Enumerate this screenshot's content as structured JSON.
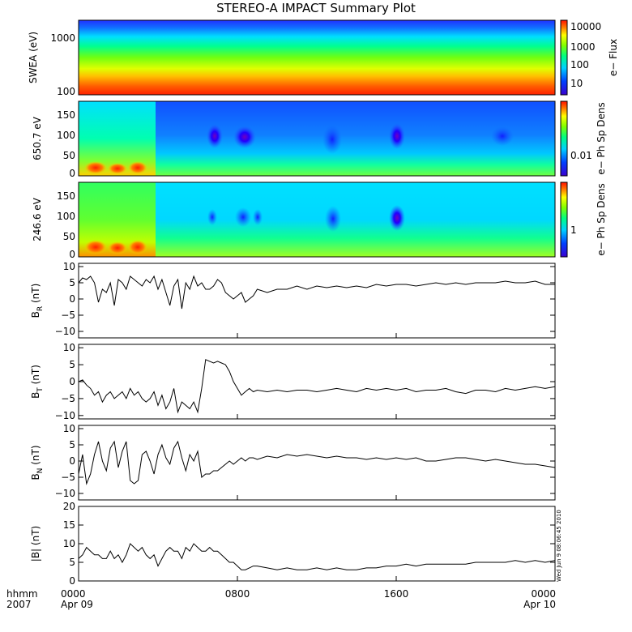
{
  "title": "STEREO-A IMPACT Summary Plot",
  "timestamp_stamp": "Wed Jun 9 08:06:45 2010",
  "x_axis": {
    "row1_labels": [
      "hhmm",
      "0000",
      "0800",
      "1600",
      "0000"
    ],
    "row2_labels": [
      "2007",
      "Apr 09",
      "Apr 10"
    ]
  },
  "colormap": "rainbow (purple-blue-cyan-green-yellow-red)",
  "chart_data": [
    {
      "type": "heatmap",
      "ylabel": "SWEA (eV)",
      "yscale": "log",
      "yticks": [
        "1000",
        "100"
      ],
      "colorbar": {
        "label": "e− Flux",
        "ticks": [
          "10000",
          "1000",
          "100",
          "10"
        ]
      }
    },
    {
      "type": "heatmap",
      "ylabel": "650.7 eV",
      "yticks": [
        "150",
        "100",
        "50",
        "0"
      ],
      "ylim": [
        0,
        180
      ],
      "colorbar": {
        "label": "e− Ph Sp Dens",
        "ticks": [
          "0.01"
        ]
      }
    },
    {
      "type": "heatmap",
      "ylabel": "246.6 eV",
      "yticks": [
        "150",
        "100",
        "50",
        "0"
      ],
      "ylim": [
        0,
        180
      ],
      "colorbar": {
        "label": "e− Ph Sp Dens",
        "ticks": [
          "1"
        ]
      }
    },
    {
      "type": "line",
      "ylabel": "B",
      "ylabel_sub": "R",
      "ylabel_unit": "(nT)",
      "ylim": [
        -12,
        11
      ],
      "yticks": [
        "10",
        "5",
        "0",
        "−5",
        "−10"
      ],
      "x": [
        0,
        0.2,
        0.4,
        0.6,
        0.8,
        1,
        1.2,
        1.4,
        1.6,
        1.8,
        2,
        2.2,
        2.4,
        2.6,
        2.8,
        3,
        3.2,
        3.4,
        3.6,
        3.8,
        4,
        4.2,
        4.4,
        4.6,
        4.8,
        5,
        5.2,
        5.4,
        5.6,
        5.8,
        6,
        6.2,
        6.4,
        6.6,
        6.8,
        7,
        7.2,
        7.4,
        7.6,
        7.8,
        8,
        8.2,
        8.4,
        8.6,
        8.8,
        9,
        9.5,
        10,
        10.5,
        11,
        11.5,
        12,
        12.5,
        13,
        13.5,
        14,
        14.5,
        15,
        15.5,
        16,
        16.5,
        17,
        17.5,
        18,
        18.5,
        19,
        19.5,
        20,
        20.5,
        21,
        21.5,
        22,
        22.5,
        23,
        23.5,
        24
      ],
      "y": [
        5,
        6.5,
        6,
        7,
        5,
        -1,
        3,
        2,
        5,
        -2,
        6,
        5,
        3,
        7,
        6,
        5,
        4,
        6,
        5,
        7,
        3,
        6,
        2,
        -2,
        4,
        6,
        -3,
        5,
        3,
        7,
        4,
        5,
        3,
        3,
        4,
        6,
        5,
        2,
        1,
        0,
        1,
        2,
        -1,
        0,
        1,
        3,
        2,
        3,
        3,
        4,
        3,
        4,
        3.5,
        4,
        3.5,
        4,
        3.5,
        4.5,
        4,
        4.5,
        4.5,
        4,
        4.5,
        5,
        4.5,
        5,
        4.5,
        5,
        5,
        5,
        5.5,
        5,
        5,
        5.5,
        4.5,
        4.5
      ]
    },
    {
      "type": "line",
      "ylabel": "B",
      "ylabel_sub": "T",
      "ylabel_unit": "(nT)",
      "ylim": [
        -11,
        11
      ],
      "yticks": [
        "10",
        "5",
        "0",
        "−5",
        "−10"
      ],
      "x": [
        0,
        0.2,
        0.4,
        0.6,
        0.8,
        1,
        1.2,
        1.4,
        1.6,
        1.8,
        2,
        2.2,
        2.4,
        2.6,
        2.8,
        3,
        3.2,
        3.4,
        3.6,
        3.8,
        4,
        4.2,
        4.4,
        4.6,
        4.8,
        5,
        5.2,
        5.4,
        5.6,
        5.8,
        6,
        6.2,
        6.4,
        6.6,
        6.8,
        7,
        7.2,
        7.4,
        7.6,
        7.8,
        8,
        8.2,
        8.4,
        8.6,
        8.8,
        9,
        9.5,
        10,
        10.5,
        11,
        11.5,
        12,
        12.5,
        13,
        13.5,
        14,
        14.5,
        15,
        15.5,
        16,
        16.5,
        17,
        17.5,
        18,
        18.5,
        19,
        19.5,
        20,
        20.5,
        21,
        21.5,
        22,
        22.5,
        23,
        23.5,
        24
      ],
      "y": [
        0,
        0.5,
        -1,
        -2,
        -4,
        -3,
        -6,
        -4,
        -3,
        -5,
        -4,
        -3,
        -5,
        -2,
        -4,
        -3,
        -5,
        -6,
        -5,
        -3,
        -7,
        -4,
        -8,
        -6,
        -2,
        -9,
        -6,
        -7,
        -8,
        -6,
        -9,
        -2,
        6.5,
        6,
        5.5,
        6,
        5.5,
        5,
        3,
        0,
        -2,
        -4,
        -3,
        -2,
        -3,
        -2.5,
        -3,
        -2.5,
        -3,
        -2.5,
        -2.5,
        -3,
        -2.5,
        -2,
        -2.5,
        -3,
        -2,
        -2.5,
        -2,
        -2.5,
        -2,
        -3,
        -2.5,
        -2.5,
        -2,
        -3,
        -3.5,
        -2.5,
        -2.5,
        -3,
        -2,
        -2.5,
        -2,
        -1.5,
        -2,
        -1.5
      ]
    },
    {
      "type": "line",
      "ylabel": "B",
      "ylabel_sub": "N",
      "ylabel_unit": "(nT)",
      "ylim": [
        -12,
        11
      ],
      "yticks": [
        "10",
        "5",
        "0",
        "−5",
        "−10"
      ],
      "x": [
        0,
        0.2,
        0.4,
        0.6,
        0.8,
        1,
        1.2,
        1.4,
        1.6,
        1.8,
        2,
        2.2,
        2.4,
        2.6,
        2.8,
        3,
        3.2,
        3.4,
        3.6,
        3.8,
        4,
        4.2,
        4.4,
        4.6,
        4.8,
        5,
        5.2,
        5.4,
        5.6,
        5.8,
        6,
        6.2,
        6.4,
        6.6,
        6.8,
        7,
        7.2,
        7.4,
        7.6,
        7.8,
        8,
        8.2,
        8.4,
        8.6,
        8.8,
        9,
        9.5,
        10,
        10.5,
        11,
        11.5,
        12,
        12.5,
        13,
        13.5,
        14,
        14.5,
        15,
        15.5,
        16,
        16.5,
        17,
        17.5,
        18,
        18.5,
        19,
        19.5,
        20,
        20.5,
        21,
        21.5,
        22,
        22.5,
        23,
        23.5,
        24
      ],
      "y": [
        -4,
        2,
        -7,
        -4,
        2,
        6,
        0,
        -3,
        4,
        6,
        -2,
        3,
        6,
        -6,
        -7,
        -6,
        2,
        3,
        0,
        -4,
        2,
        5,
        1,
        -1,
        4,
        6,
        1,
        -3,
        2,
        0,
        3,
        -5,
        -4,
        -4,
        -3,
        -3,
        -2,
        -1,
        0,
        -1,
        0,
        1,
        0,
        1,
        1,
        0.5,
        1.5,
        1,
        2,
        1.5,
        2,
        1.5,
        1,
        1.5,
        1,
        1,
        0.5,
        1,
        0.5,
        1,
        0.5,
        1,
        0,
        0,
        0.5,
        1,
        1,
        0.5,
        0,
        0.5,
        0,
        -0.5,
        -1,
        -1,
        -1.5,
        -2
      ]
    },
    {
      "type": "line",
      "ylabel": "|B| (nT)",
      "ylim": [
        0,
        20
      ],
      "yticks": [
        "20",
        "15",
        "10",
        "5",
        "0"
      ],
      "x": [
        0,
        0.2,
        0.4,
        0.6,
        0.8,
        1,
        1.2,
        1.4,
        1.6,
        1.8,
        2,
        2.2,
        2.4,
        2.6,
        2.8,
        3,
        3.2,
        3.4,
        3.6,
        3.8,
        4,
        4.2,
        4.4,
        4.6,
        4.8,
        5,
        5.2,
        5.4,
        5.6,
        5.8,
        6,
        6.2,
        6.4,
        6.6,
        6.8,
        7,
        7.2,
        7.4,
        7.6,
        7.8,
        8,
        8.2,
        8.4,
        8.6,
        8.8,
        9,
        9.5,
        10,
        10.5,
        11,
        11.5,
        12,
        12.5,
        13,
        13.5,
        14,
        14.5,
        15,
        15.5,
        16,
        16.5,
        17,
        17.5,
        18,
        18.5,
        19,
        19.5,
        20,
        20.5,
        21,
        21.5,
        22,
        22.5,
        23,
        23.5,
        24
      ],
      "y": [
        6,
        7,
        9,
        8,
        7,
        7,
        6,
        6,
        8,
        6,
        7,
        5,
        7,
        10,
        9,
        8,
        9,
        7,
        6,
        7,
        4,
        6,
        8,
        9,
        8,
        8,
        6,
        9,
        8,
        10,
        9,
        8,
        8,
        9,
        8,
        8,
        7,
        6,
        5,
        5,
        4,
        3,
        3,
        3.5,
        4,
        4,
        3.5,
        3,
        3.5,
        3,
        3,
        3.5,
        3,
        3.5,
        3,
        3,
        3.5,
        3.5,
        4,
        4,
        4.5,
        4,
        4.5,
        4.5,
        4.5,
        4.5,
        4.5,
        5,
        5,
        5,
        5,
        5.5,
        5,
        5.5,
        5,
        5.5
      ]
    }
  ]
}
